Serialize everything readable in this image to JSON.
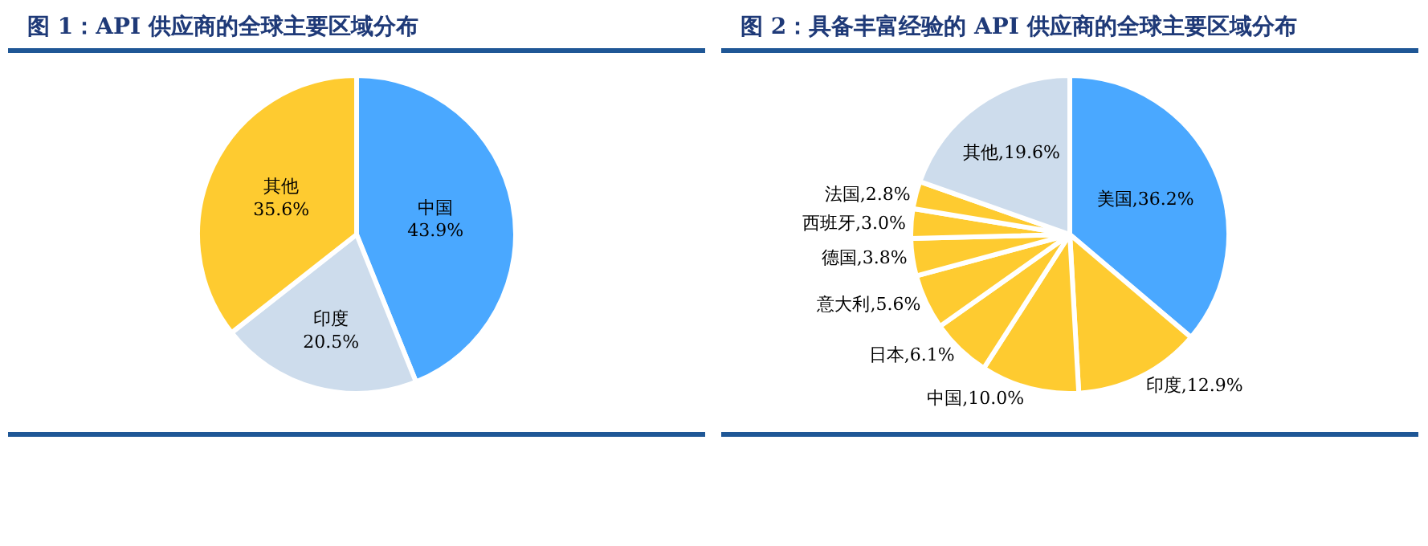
{
  "chart_data": [
    {
      "type": "pie",
      "title": "图 1：API 供应商的全球主要区域分布",
      "categories": [
        "中国",
        "印度",
        "其他"
      ],
      "values": [
        43.9,
        20.5,
        35.6
      ],
      "colors": [
        "#4aa8ff",
        "#cddcec",
        "#fecb30"
      ],
      "value_labels": [
        "43.9%",
        "20.5%",
        "35.6%"
      ],
      "legend": false
    },
    {
      "type": "pie",
      "title": "图 2：具备丰富经验的 API 供应商的全球主要区域分布",
      "categories": [
        "美国",
        "印度",
        "中国",
        "日本",
        "意大利",
        "德国",
        "西班牙",
        "法国",
        "其他"
      ],
      "values": [
        36.2,
        12.9,
        10.0,
        6.1,
        5.6,
        3.8,
        3.0,
        2.8,
        19.6
      ],
      "colors": [
        "#4aa8ff",
        "#fecb30",
        "#fecb30",
        "#fecb30",
        "#fecb30",
        "#fecb30",
        "#fecb30",
        "#fecb30",
        "#cddcec"
      ],
      "value_labels": [
        "36.2%",
        "12.9%",
        "10.0%",
        "6.1%",
        "5.6%",
        "3.8%",
        "3.0%",
        "2.8%",
        "19.6%"
      ],
      "legend": false
    }
  ]
}
